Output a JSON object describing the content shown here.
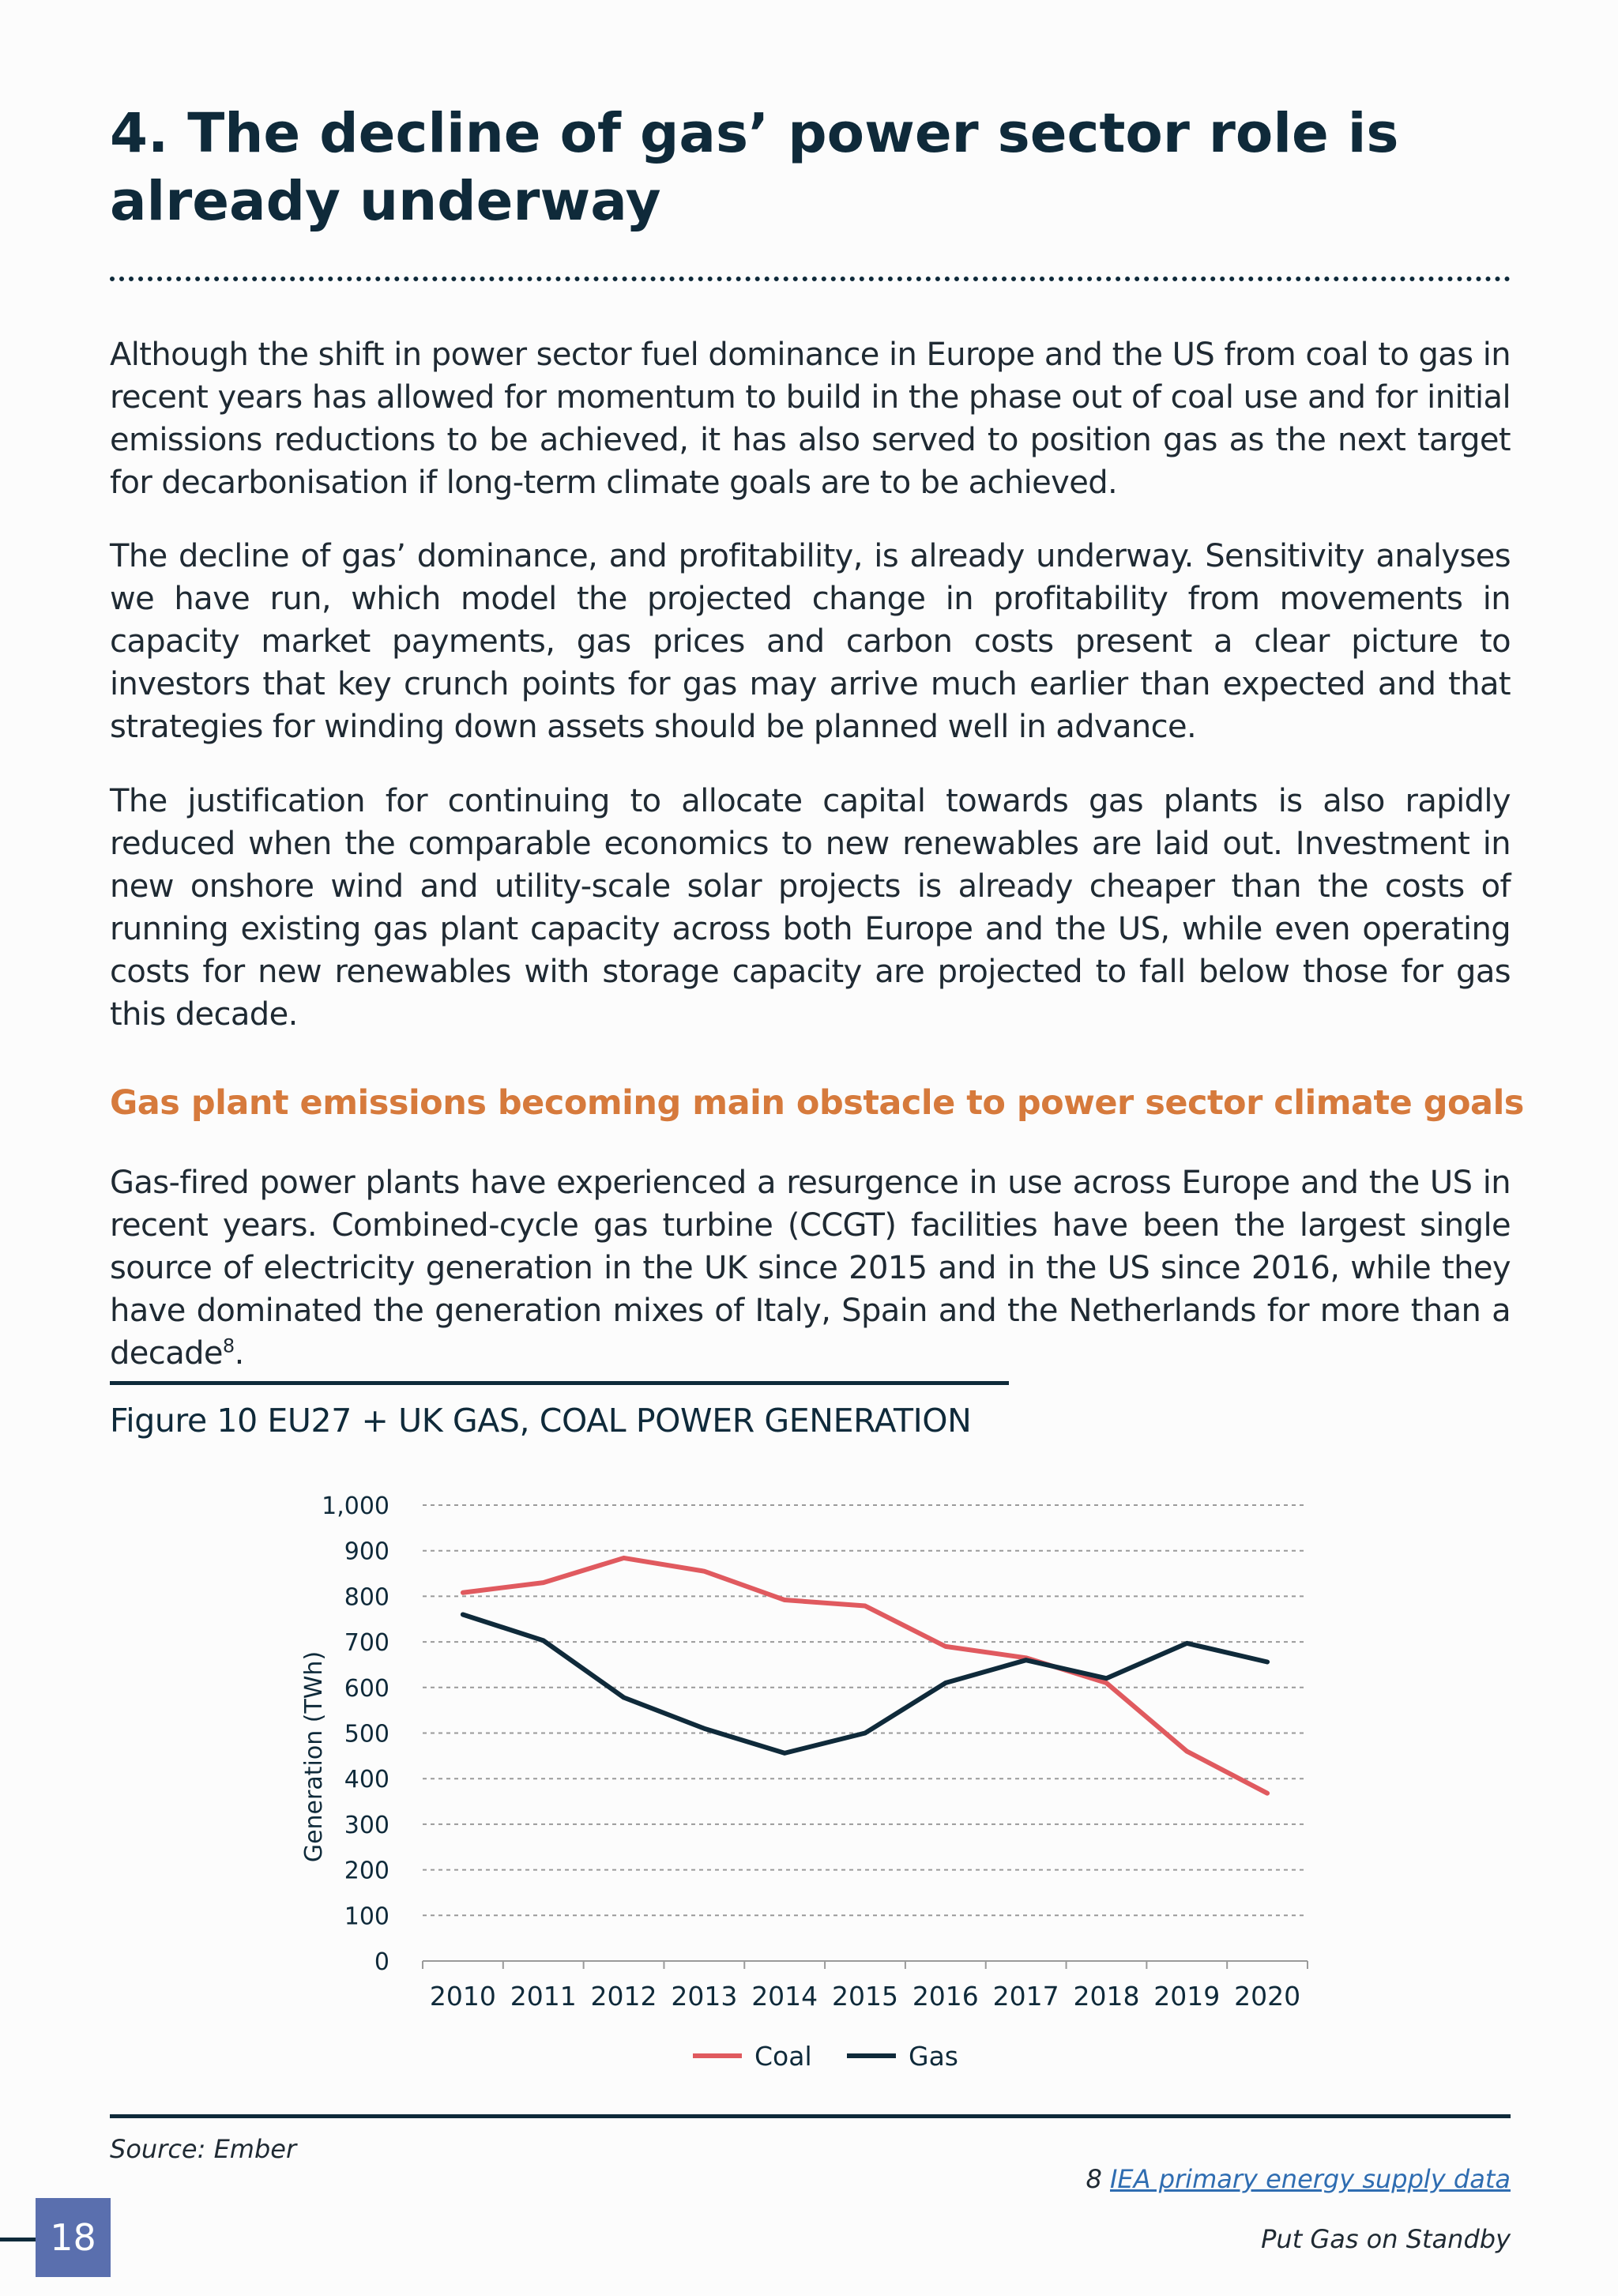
{
  "header": {
    "title_line1": "4. The decline of gas’ power sector role is",
    "title_line2": "already underway"
  },
  "body": {
    "paragraph1": "Although the shift in power sector fuel dominance in Europe and the US from coal to gas in recent years has allowed for momentum to build in the phase out of coal use and for initial emissions reductions to be achieved, it has also served to position gas as the next target for decarbonisation if long-term climate goals are to be achieved.",
    "paragraph2": "The decline of gas’ dominance, and profitability, is already underway. Sensitivity analyses we have run, which model the projected change in profitability from movements in capacity market payments, gas prices and carbon costs present a clear picture to investors that key crunch points for gas may arrive much earlier than expected and that strategies for winding down assets should be planned well in advance.",
    "paragraph3": "The justification for continuing to allocate capital towards gas plants is also rapidly reduced when the comparable economics to new renewables are laid out. Investment in new onshore wind and utility-scale solar projects is already cheaper than the costs of running existing gas plant capacity across both Europe and the US, while even operating costs for new renewables with storage capacity are projected to fall below those for gas this decade.",
    "section_heading": "Gas plant emissions becoming main obstacle to power sector climate goals",
    "paragraph4": "Gas-fired power plants have experienced a resurgence in use across Europe and the US in recent years. Combined-cycle gas turbine (CCGT) facilities have been the largest single source of electricity generation in the UK since 2015 and in the US since 2016, while they have dominated the generation mixes of Italy, Spain and the Netherlands for more than a decade",
    "paragraph4_footnote_ref": "8",
    "paragraph4_end": "."
  },
  "figure": {
    "caption": "Figure 10 EU27 + UK GAS, COAL POWER GENERATION",
    "source": "Source: Ember"
  },
  "chart_data": {
    "type": "line",
    "title": "",
    "xlabel": "",
    "ylabel": "Generation (TWh)",
    "categories": [
      "2010",
      "2011",
      "2012",
      "2013",
      "2014",
      "2015",
      "2016",
      "2017",
      "2018",
      "2019",
      "2020"
    ],
    "ylim": [
      0,
      1000
    ],
    "yticks": [
      0,
      100,
      200,
      300,
      400,
      500,
      600,
      700,
      800,
      900,
      1000
    ],
    "ytick_labels": [
      "0",
      "100",
      "200",
      "300",
      "400",
      "500",
      "600",
      "700",
      "800",
      "900",
      "1,000"
    ],
    "grid": true,
    "legend_position": "bottom",
    "series": [
      {
        "name": "Coal",
        "color": "#e05a5f",
        "values": [
          808,
          830,
          884,
          855,
          792,
          779,
          690,
          665,
          610,
          460,
          368
        ]
      },
      {
        "name": "Gas",
        "color": "#0f2a3a",
        "values": [
          760,
          703,
          578,
          510,
          456,
          500,
          610,
          660,
          620,
          697,
          656
        ]
      }
    ]
  },
  "footnote": {
    "number": "8",
    "link_text": "IEA primary energy supply data"
  },
  "footer": {
    "page_number": "18",
    "running_title": "Put Gas on Standby"
  }
}
